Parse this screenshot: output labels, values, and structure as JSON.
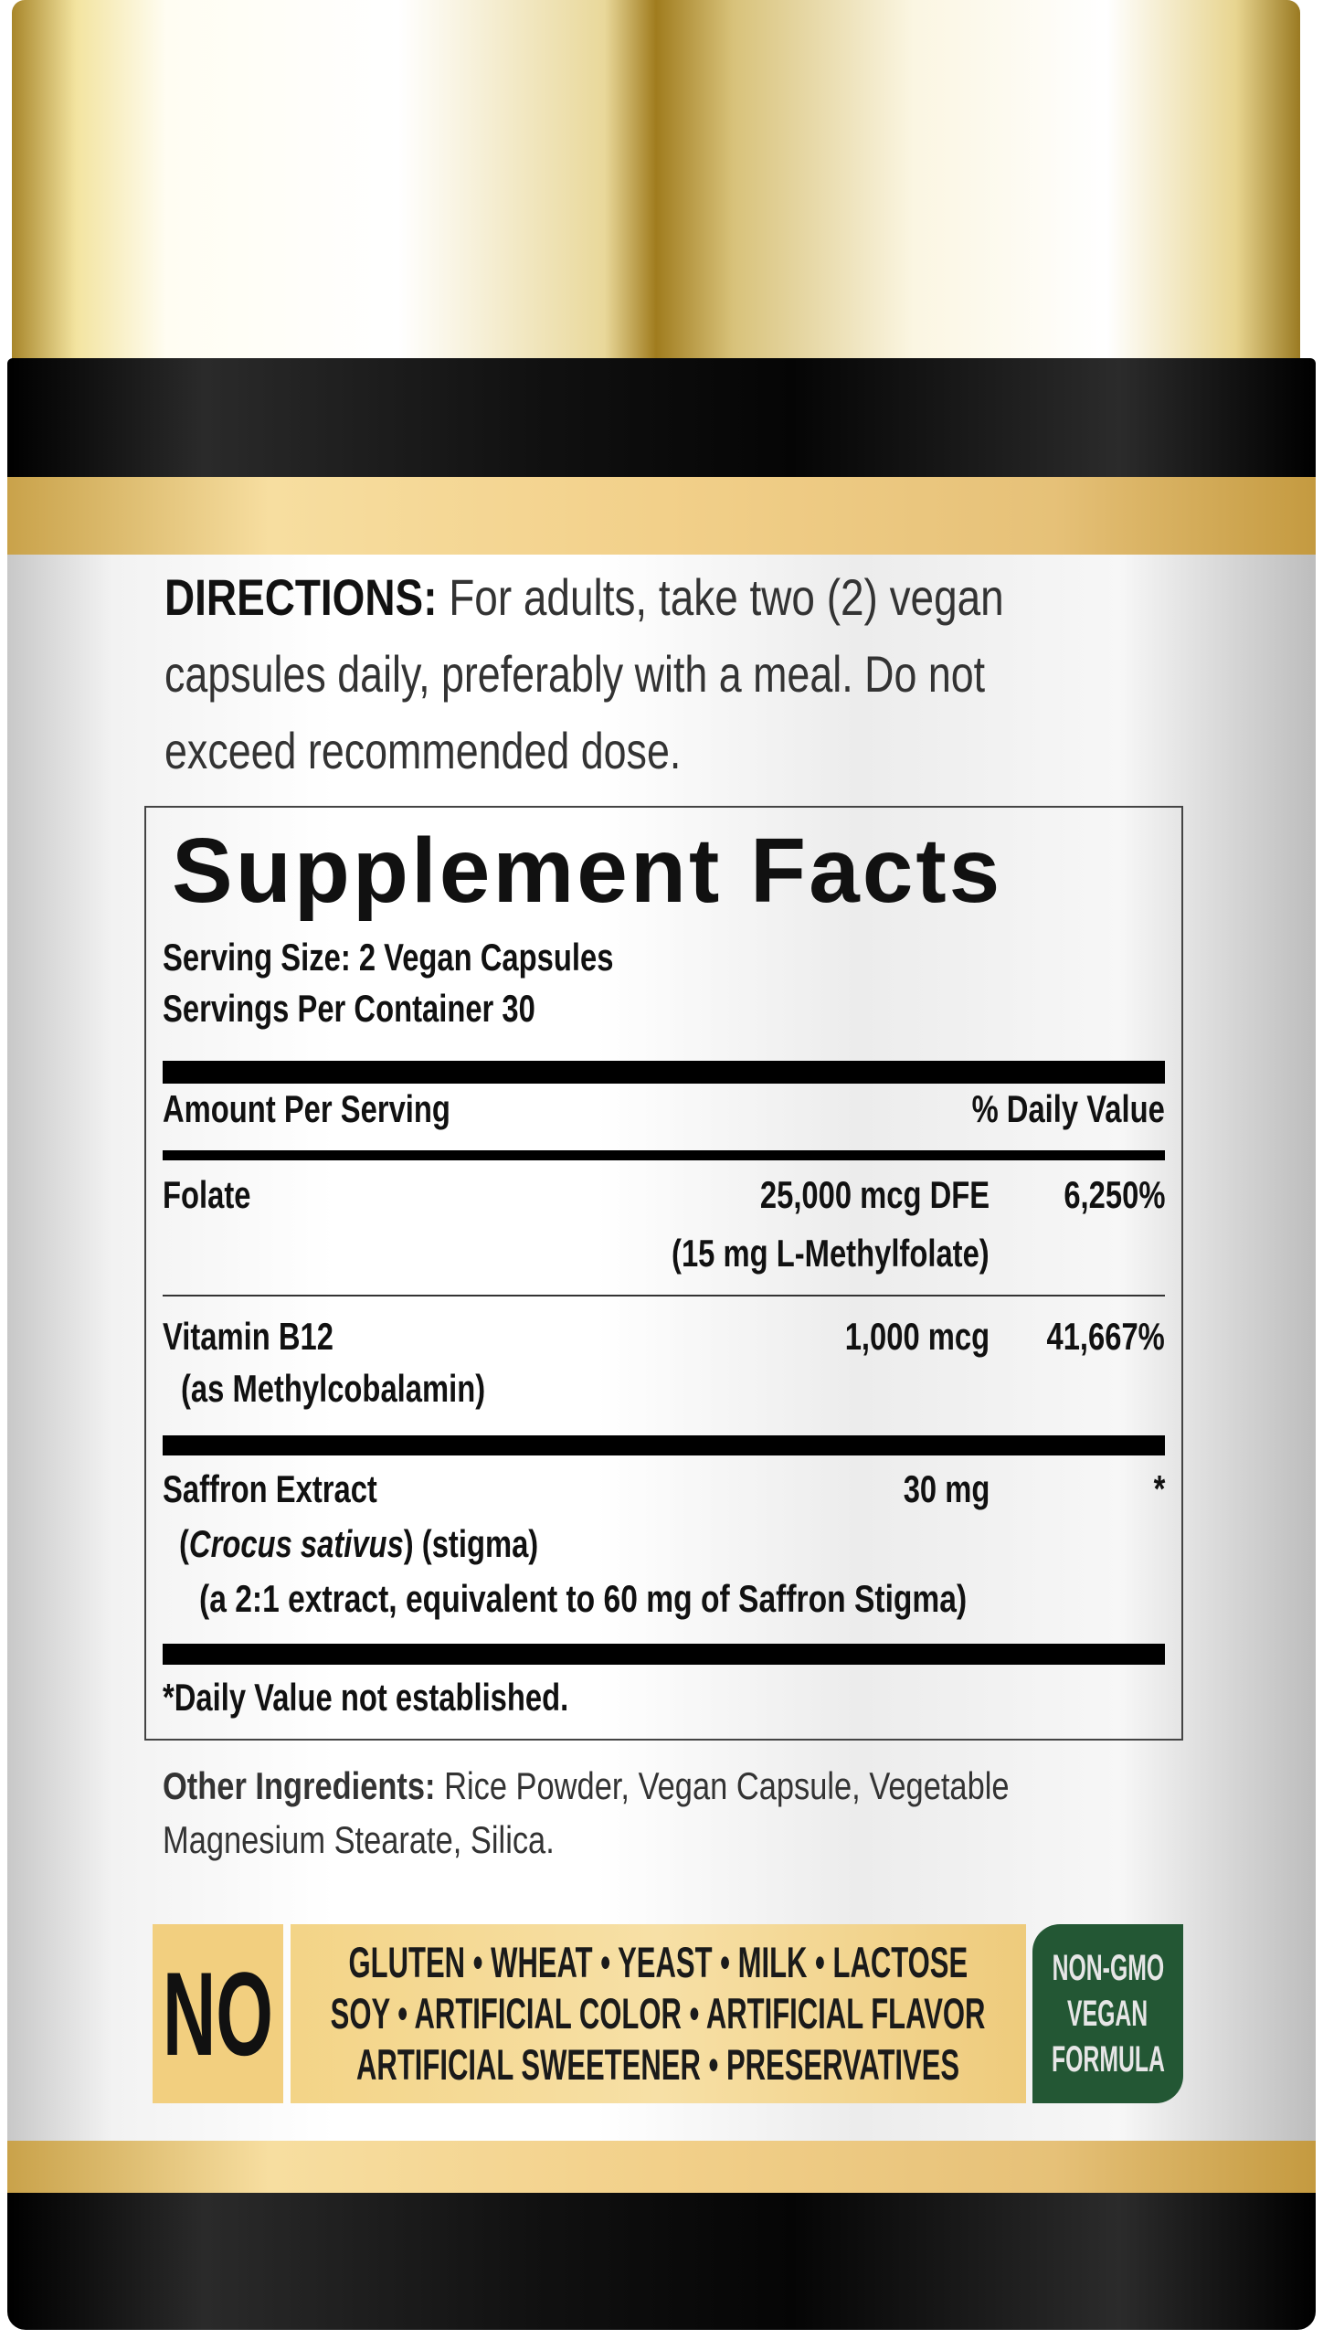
{
  "colors": {
    "gold": "#f2cf7f",
    "green_badge": "#235734",
    "bottle": "#111111",
    "label": "#ffffff"
  },
  "directions": {
    "label": "DIRECTIONS:",
    "lines": [
      "For adults, take two (2) vegan",
      "capsules daily, preferably with a meal. Do not",
      "exceed recommended dose."
    ]
  },
  "facts": {
    "title": "Supplement Facts",
    "serving_size": "Serving Size: 2 Vegan Capsules",
    "servings_per_container": "Servings Per Container 30",
    "amount_header": "Amount Per Serving",
    "dv_header": "% Daily Value",
    "rows": [
      {
        "name": "Folate",
        "amount": "25,000 mcg DFE",
        "dv": "6,250%",
        "sub": "(15 mg L-Methylfolate)"
      },
      {
        "name": "Vitamin B12",
        "amount": "1,000 mcg",
        "dv": "41,667%",
        "sub": "(as Methylcobalamin)"
      },
      {
        "name": "Saffron Extract",
        "amount": "30 mg",
        "dv": "*",
        "sub_italic": "Crocus sativus",
        "sub_rest": ") (stigma)",
        "sub_open": "(",
        "sub2": "(a 2:1 extract, equivalent to 60 mg of Saffron Stigma)"
      }
    ],
    "footnote": "*Daily Value not established."
  },
  "other_ingredients": {
    "label": "Other Ingredients:",
    "text": "Rice Powder, Vegan Capsule, Vegetable",
    "text2": "Magnesium Stearate, Silica."
  },
  "free_from": {
    "no": "NO",
    "lines": [
      "GLUTEN • WHEAT • YEAST • MILK • LACTOSE",
      "SOY • ARTIFICIAL COLOR • ARTIFICIAL FLAVOR",
      "ARTIFICIAL SWEETENER • PRESERVATIVES"
    ]
  },
  "badge": {
    "lines": [
      "NON-GMO",
      "VEGAN",
      "FORMULA"
    ]
  }
}
